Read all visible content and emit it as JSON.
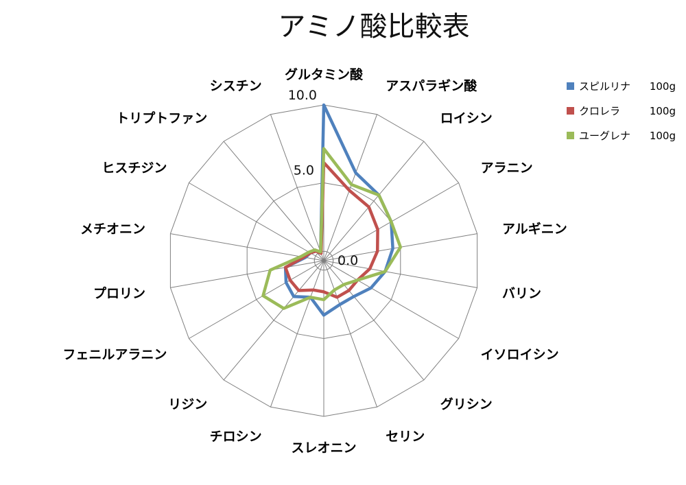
{
  "chart_data": {
    "type": "radar",
    "title": "アミノ酸比較表",
    "axes": [
      "グルタミン酸",
      "アスパラギン酸",
      "ロイシン",
      "アラニン",
      "アルギニン",
      "バリン",
      "イソロイシン",
      "グリシン",
      "セリン",
      "スレオニン",
      "チロシン",
      "リジン",
      "フェニルアラニン",
      "プロリン",
      "メチオニン",
      "ヒスチジン",
      "トリプトファン",
      "シスチン"
    ],
    "ticks": [
      "10.0",
      "5.0",
      "0.0"
    ],
    "range": [
      0,
      10
    ],
    "grid": true,
    "legend_position": "top-right",
    "series": [
      {
        "name": "スピルリナ",
        "amount": "100g",
        "color": "#4f81bd",
        "values": [
          10.0,
          6.0,
          5.5,
          5.0,
          4.5,
          4.0,
          3.5,
          3.0,
          3.0,
          3.5,
          2.5,
          3.0,
          2.8,
          2.5,
          1.2,
          1.0,
          0.8,
          0.6
        ]
      },
      {
        "name": "クロレラ",
        "amount": "100g",
        "color": "#c0504d",
        "values": [
          6.3,
          4.8,
          4.5,
          4.0,
          3.5,
          3.0,
          2.5,
          2.5,
          2.5,
          2.0,
          2.0,
          2.5,
          2.5,
          2.5,
          1.3,
          1.0,
          0.8,
          0.5
        ]
      },
      {
        "name": "ユーグレナ",
        "amount": "100g",
        "color": "#9bbb59",
        "values": [
          7.2,
          5.2,
          5.5,
          5.0,
          5.0,
          4.0,
          2.5,
          2.0,
          2.0,
          2.5,
          2.5,
          4.0,
          4.5,
          3.5,
          1.5,
          1.1,
          0.9,
          0.6
        ]
      }
    ]
  }
}
